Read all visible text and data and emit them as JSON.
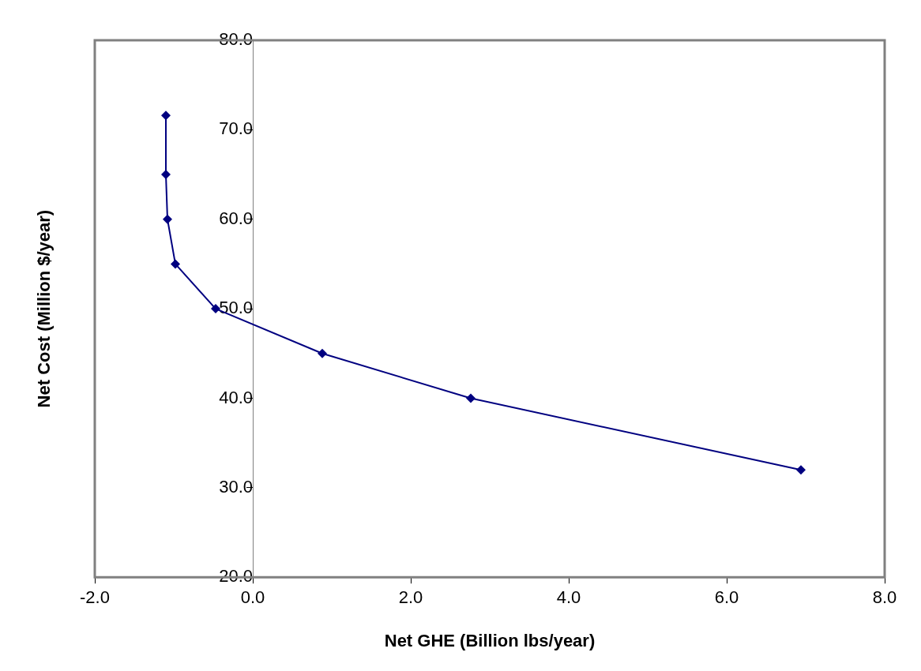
{
  "chart_data": {
    "type": "line",
    "xlabel": "Net GHE (Billion lbs/year)",
    "ylabel": "Net Cost (Million $/year)",
    "x": [
      -1.1,
      -1.1,
      -1.08,
      -0.98,
      -0.47,
      0.88,
      2.76,
      6.94
    ],
    "series": [
      {
        "color": "#000080",
        "values": [
          71.6,
          65.0,
          60.0,
          55.0,
          50.0,
          45.0,
          40.0,
          32.0
        ]
      }
    ],
    "xlim": [
      -2,
      8
    ],
    "xticks": [
      {
        "value": -2,
        "label": "-2.0"
      },
      {
        "value": 0,
        "label": "0.0"
      },
      {
        "value": 2,
        "label": "2.0"
      },
      {
        "value": 4,
        "label": "4.0"
      },
      {
        "value": 6,
        "label": "6.0"
      },
      {
        "value": 8,
        "label": "8.0"
      }
    ],
    "ylim": [
      20,
      80
    ],
    "yticks": [
      {
        "value": 20,
        "label": "20.0"
      },
      {
        "value": 30,
        "label": "30.0"
      },
      {
        "value": 40,
        "label": "40.0"
      },
      {
        "value": 50,
        "label": "50.0"
      },
      {
        "value": 60,
        "label": "60.0"
      },
      {
        "value": 70,
        "label": "70.0"
      },
      {
        "value": 80,
        "label": "80.0"
      }
    ],
    "grid": false,
    "legend": false,
    "marker": "diamond",
    "line_style": "solid"
  }
}
